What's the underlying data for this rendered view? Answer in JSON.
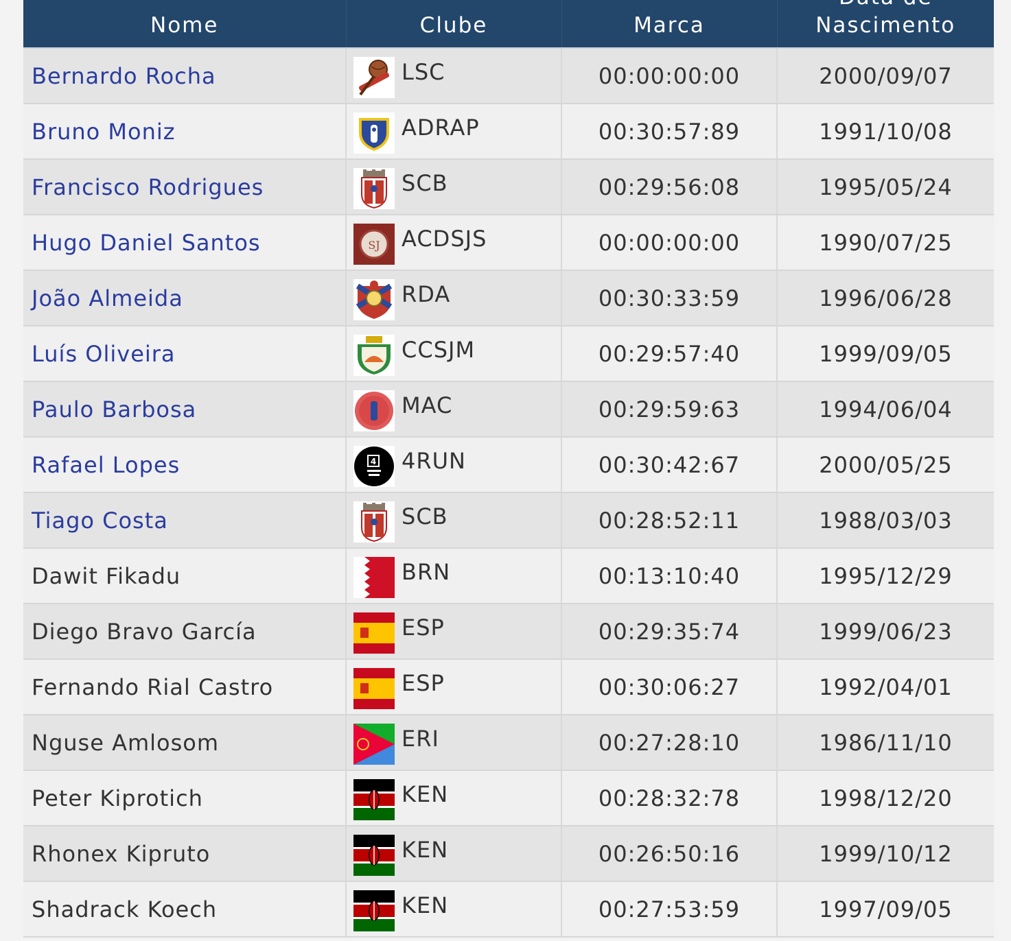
{
  "headers": {
    "name": "Nome",
    "club": "Clube",
    "mark": "Marca",
    "dob_line1": "Data de",
    "dob_line2": "Nascimento"
  },
  "rows": [
    {
      "name": "Bernardo Rocha",
      "link": true,
      "club": "LSC",
      "logo": "lsc-logo",
      "mark": "00:00:00:00",
      "dob": "2000/09/07"
    },
    {
      "name": "Bruno Moniz",
      "link": true,
      "club": "ADRAP",
      "logo": "adrap-logo",
      "mark": "00:30:57:89",
      "dob": "1991/10/08"
    },
    {
      "name": "Francisco Rodrigues",
      "link": true,
      "club": "SCB",
      "logo": "scb-logo",
      "mark": "00:29:56:08",
      "dob": "1995/05/24"
    },
    {
      "name": "Hugo Daniel Santos",
      "link": true,
      "club": "ACDSJS",
      "logo": "acdsjs-logo",
      "mark": "00:00:00:00",
      "dob": "1990/07/25"
    },
    {
      "name": "João Almeida",
      "link": true,
      "club": "RDA",
      "logo": "rda-logo",
      "mark": "00:30:33:59",
      "dob": "1996/06/28"
    },
    {
      "name": "Luís Oliveira",
      "link": true,
      "club": "CCSJM",
      "logo": "ccsjm-logo",
      "mark": "00:29:57:40",
      "dob": "1999/09/05"
    },
    {
      "name": "Paulo Barbosa",
      "link": true,
      "club": "MAC",
      "logo": "mac-logo",
      "mark": "00:29:59:63",
      "dob": "1994/06/04"
    },
    {
      "name": "Rafael Lopes",
      "link": true,
      "club": "4RUN",
      "logo": "4run-logo",
      "mark": "00:30:42:67",
      "dob": "2000/05/25"
    },
    {
      "name": "Tiago Costa",
      "link": true,
      "club": "SCB",
      "logo": "scb-logo",
      "mark": "00:28:52:11",
      "dob": "1988/03/03"
    },
    {
      "name": "Dawit Fikadu",
      "link": false,
      "club": "BRN",
      "logo": "bahrain-flag",
      "mark": "00:13:10:40",
      "dob": "1995/12/29"
    },
    {
      "name": "Diego Bravo García",
      "link": false,
      "club": "ESP",
      "logo": "spain-flag",
      "mark": "00:29:35:74",
      "dob": "1999/06/23"
    },
    {
      "name": "Fernando Rial Castro",
      "link": false,
      "club": "ESP",
      "logo": "spain-flag",
      "mark": "00:30:06:27",
      "dob": "1992/04/01"
    },
    {
      "name": "Nguse Amlosom",
      "link": false,
      "club": "ERI",
      "logo": "eritrea-flag",
      "mark": "00:27:28:10",
      "dob": "1986/11/10"
    },
    {
      "name": "Peter Kiprotich",
      "link": false,
      "club": "KEN",
      "logo": "kenya-flag",
      "mark": "00:28:32:78",
      "dob": "1998/12/20"
    },
    {
      "name": "Rhonex Kipruto",
      "link": false,
      "club": "KEN",
      "logo": "kenya-flag",
      "mark": "00:26:50:16",
      "dob": "1999/10/12"
    },
    {
      "name": "Shadrack Koech",
      "link": false,
      "club": "KEN",
      "logo": "kenya-flag",
      "mark": "00:27:53:59",
      "dob": "1997/09/05"
    }
  ]
}
